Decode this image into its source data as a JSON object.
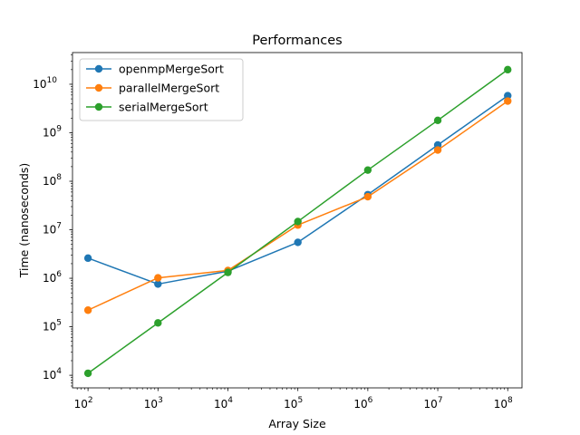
{
  "chart_data": {
    "type": "line",
    "title": "Performances",
    "xlabel": "Array Size",
    "ylabel": "Time (nanoseconds)",
    "x_scale": "log",
    "y_scale": "log",
    "xlim": [
      60,
      160000000
    ],
    "ylim": [
      5500,
      45000000000
    ],
    "x": [
      100,
      1000,
      10000,
      100000,
      1000000,
      10000000,
      100000000
    ],
    "x_ticks": [
      {
        "base": "10",
        "exp": "2",
        "value": 100
      },
      {
        "base": "10",
        "exp": "3",
        "value": 1000
      },
      {
        "base": "10",
        "exp": "4",
        "value": 10000
      },
      {
        "base": "10",
        "exp": "5",
        "value": 100000
      },
      {
        "base": "10",
        "exp": "6",
        "value": 1000000
      },
      {
        "base": "10",
        "exp": "7",
        "value": 10000000
      },
      {
        "base": "10",
        "exp": "8",
        "value": 100000000
      }
    ],
    "y_ticks": [
      {
        "base": "10",
        "exp": "4",
        "value": 10000
      },
      {
        "base": "10",
        "exp": "5",
        "value": 100000
      },
      {
        "base": "10",
        "exp": "6",
        "value": 1000000
      },
      {
        "base": "10",
        "exp": "7",
        "value": 10000000
      },
      {
        "base": "10",
        "exp": "8",
        "value": 100000000
      },
      {
        "base": "10",
        "exp": "9",
        "value": 1000000000
      },
      {
        "base": "10",
        "exp": "10",
        "value": 10000000000
      }
    ],
    "series": [
      {
        "name": "openmpMergeSort",
        "color": "#1f77b4",
        "values": [
          2600000,
          760000,
          1400000,
          5500000,
          53000000,
          560000000,
          5800000000
        ]
      },
      {
        "name": "parallelMergeSort",
        "color": "#ff7f0e",
        "values": [
          220000,
          1020000,
          1450000,
          12500000,
          48000000,
          440000000,
          4500000000
        ]
      },
      {
        "name": "serialMergeSort",
        "color": "#2ca02c",
        "values": [
          11000,
          120000,
          1320000,
          14800000,
          170000000,
          1800000000,
          20000000000
        ]
      }
    ],
    "legend": {
      "placement": "top-left"
    },
    "grid": false
  }
}
